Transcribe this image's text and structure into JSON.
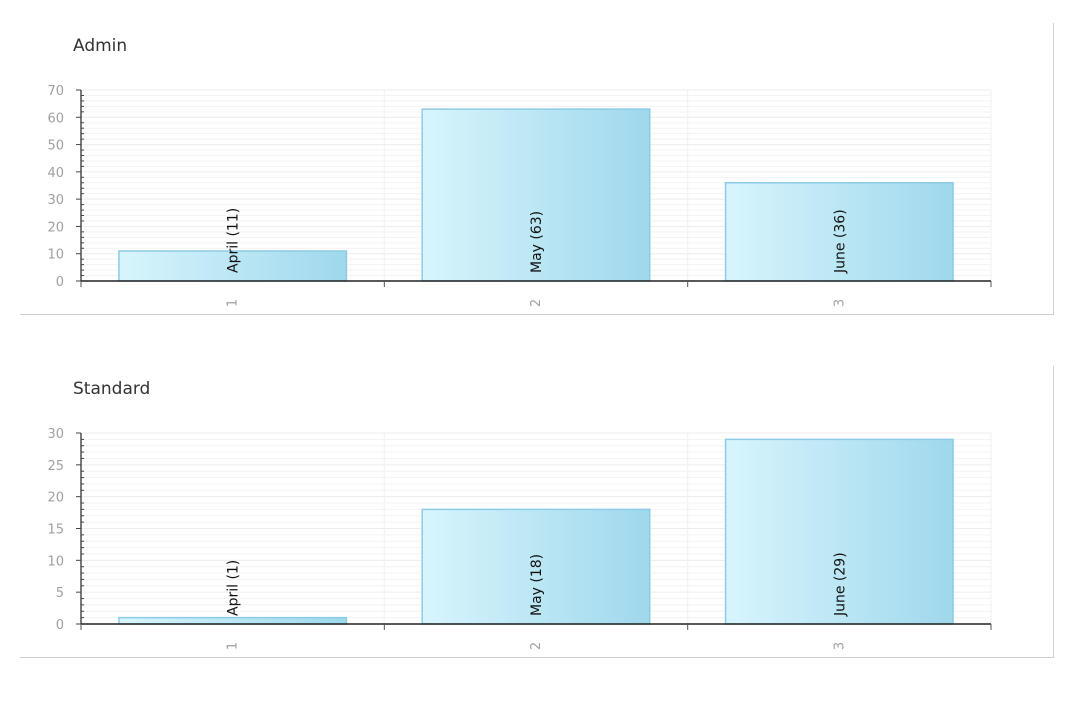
{
  "chart_data": [
    {
      "type": "bar",
      "title": "Admin",
      "categories": [
        "1",
        "2",
        "3"
      ],
      "values": [
        11,
        63,
        36
      ],
      "bar_labels": [
        "April (11)",
        "May (63)",
        "June (36)"
      ],
      "ylim": [
        0,
        70
      ],
      "yticks": [
        0,
        10,
        20,
        30,
        40,
        50,
        60,
        70
      ],
      "xlabel": "",
      "ylabel": "",
      "grid": true,
      "colors": {
        "bar_light": "#d8f5fd",
        "bar_dark": "#9fd8ec",
        "bar_stroke": "#8ccbe6"
      }
    },
    {
      "type": "bar",
      "title": "Standard",
      "categories": [
        "1",
        "2",
        "3"
      ],
      "values": [
        1,
        18,
        29
      ],
      "bar_labels": [
        "April (1)",
        "May (18)",
        "June (29)"
      ],
      "ylim": [
        0,
        30
      ],
      "yticks": [
        0,
        5,
        10,
        15,
        20,
        25,
        30
      ],
      "xlabel": "",
      "ylabel": "",
      "grid": true,
      "colors": {
        "bar_light": "#d8f5fd",
        "bar_dark": "#9fd8ec",
        "bar_stroke": "#8ccbe6"
      }
    }
  ]
}
